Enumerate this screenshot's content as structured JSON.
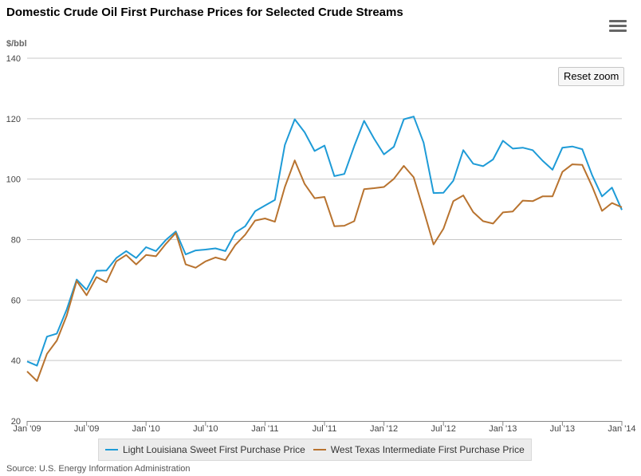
{
  "page": {
    "title": "Domestic Crude Oil First Purchase Prices for Selected Crude Streams",
    "reset_zoom_label": "Reset zoom",
    "source": "Source: U.S. Energy Information Administration",
    "menu_icon": "hamburger-menu-icon"
  },
  "colors": {
    "lls": "#1e9bd7",
    "wti": "#b8732f",
    "grid": "#c8c8c8",
    "axis_text": "#444444"
  },
  "chart_data": {
    "type": "line",
    "title": "Domestic Crude Oil First Purchase Prices for Selected Crude Streams",
    "ylabel": "$/bbl",
    "xlabel": "",
    "ylim": [
      20,
      140
    ],
    "yticks": [
      20,
      40,
      60,
      80,
      100,
      120,
      140
    ],
    "x_tick_labels": [
      "Jan '09",
      "Jul '09",
      "Jan '10",
      "Jul '10",
      "Jan '11",
      "Jul '11",
      "Jan '12",
      "Jul '12",
      "Jan '13",
      "Jul '13",
      "Jan '14"
    ],
    "x_start": "2009-01",
    "x_end": "2014-01",
    "legend_position": "bottom",
    "series": [
      {
        "name": "Light Louisiana Sweet First Purchase Price",
        "color_key": "lls",
        "values": [
          39.7,
          38.3,
          47.9,
          48.9,
          56.9,
          66.8,
          63.4,
          69.7,
          69.8,
          73.9,
          76.2,
          73.9,
          77.5,
          76.2,
          79.9,
          82.7,
          75.1,
          76.4,
          76.7,
          77.1,
          76.2,
          82.3,
          84.4,
          89.4,
          91.3,
          93.1,
          111.3,
          119.8,
          115.5,
          109.3,
          111.1,
          101.0,
          101.7,
          110.9,
          119.3,
          113.4,
          108.2,
          110.7,
          119.8,
          120.7,
          112.1,
          95.4,
          95.5,
          99.5,
          109.6,
          105.1,
          104.3,
          106.5,
          112.7,
          110.1,
          110.4,
          109.6,
          106.1,
          103.1,
          110.4,
          110.8,
          109.9,
          101.3,
          94.3,
          97.2,
          89.8
        ]
      },
      {
        "name": "West Texas Intermediate First Purchase Price",
        "color_key": "wti",
        "values": [
          36.4,
          33.2,
          42.2,
          46.6,
          54.9,
          66.3,
          61.6,
          67.6,
          65.9,
          72.8,
          74.9,
          71.8,
          74.9,
          74.5,
          78.6,
          82.2,
          71.8,
          70.7,
          72.8,
          74.1,
          73.2,
          78.2,
          81.6,
          86.3,
          87.0,
          85.9,
          97.4,
          106.2,
          98.4,
          93.7,
          94.1,
          84.4,
          84.6,
          86.1,
          96.7,
          97.0,
          97.4,
          100.1,
          104.4,
          100.6,
          89.7,
          78.4,
          83.6,
          92.7,
          94.6,
          89.1,
          86.1,
          85.3,
          89.0,
          89.3,
          92.9,
          92.7,
          94.3,
          94.3,
          102.4,
          104.9,
          104.7,
          97.6,
          89.5,
          92.1,
          90.7
        ]
      }
    ]
  }
}
